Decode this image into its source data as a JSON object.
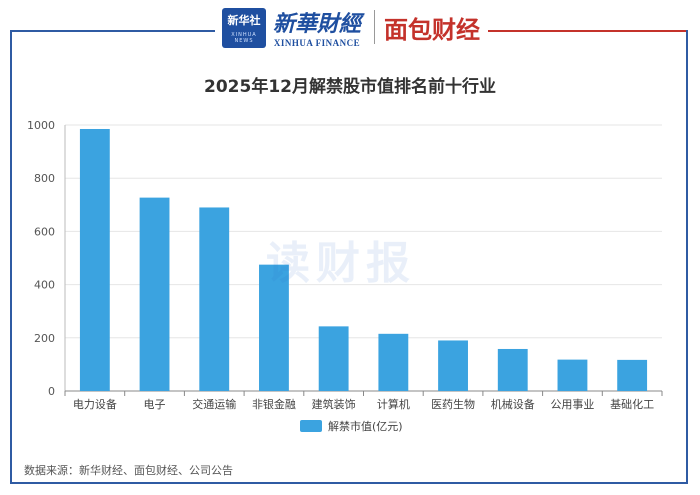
{
  "header": {
    "logo1_text": "新华社",
    "logo1_sub": "XINHUA NEWS",
    "brand1_cn": "新華財經",
    "brand1_en": "XINHUA FINANCE",
    "brand2": "面包财经"
  },
  "watermark": "读财报",
  "source": "数据来源：新华财经、面包财经、公司公告",
  "colors": {
    "bar": "#3ba3e0",
    "frame_blue": "#2f5ba3",
    "frame_red": "#c4322b"
  },
  "chart_data": {
    "type": "bar",
    "title": "2025年12月解禁股市值排名前十行业",
    "categories": [
      "电力设备",
      "电子",
      "交通运输",
      "非银金融",
      "建筑装饰",
      "计算机",
      "医药生物",
      "机械设备",
      "公用事业",
      "基础化工"
    ],
    "series": [
      {
        "name": "解禁市值(亿元)",
        "values": [
          985,
          727,
          690,
          475,
          243,
          215,
          190,
          158,
          118,
          117
        ]
      }
    ],
    "xlabel": "",
    "ylabel": "",
    "ylim": [
      0,
      1000
    ],
    "yticks": [
      0,
      200,
      400,
      600,
      800,
      1000
    ],
    "grid": true,
    "legend": "bottom-center"
  }
}
